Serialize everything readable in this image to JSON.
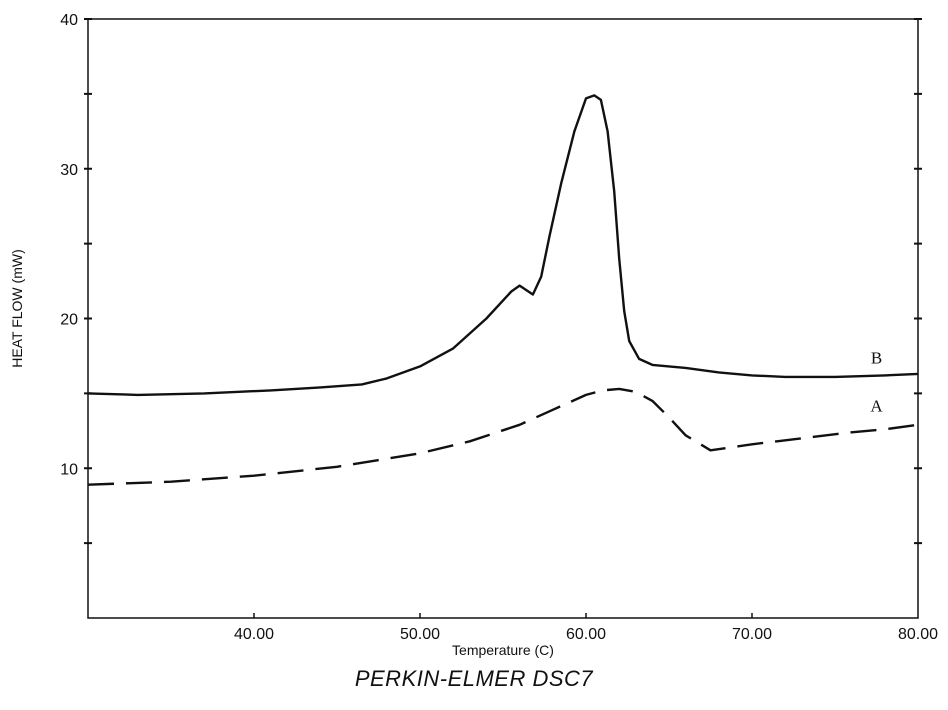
{
  "chart_data": {
    "type": "line",
    "title": "",
    "xlabel": "Temperature (C)",
    "ylabel": "HEAT FLOW (mW)",
    "xlim": [
      30,
      80
    ],
    "ylim": [
      0,
      40
    ],
    "x_ticks": [
      "40.00",
      "50.00",
      "60.00",
      "70.00",
      "80.00"
    ],
    "y_ticks": [
      "10",
      "20",
      "30",
      "40"
    ],
    "grid": false,
    "legend": "none",
    "series": [
      {
        "name": "B",
        "style": "solid",
        "color": "#111111",
        "x": [
          30,
          33,
          37,
          41,
          44,
          46.5,
          48,
          50,
          52,
          54,
          55.5,
          56,
          56.8,
          57.3,
          57.8,
          58.5,
          59.3,
          60,
          60.5,
          60.9,
          61.3,
          61.7,
          62,
          62.3,
          62.6,
          63.2,
          64,
          66,
          68,
          70,
          72,
          75,
          78,
          80
        ],
        "values": [
          15.0,
          14.9,
          15.0,
          15.2,
          15.4,
          15.6,
          16.0,
          16.8,
          18.0,
          20.0,
          21.8,
          22.2,
          21.6,
          22.8,
          25.5,
          29.0,
          32.5,
          34.7,
          34.9,
          34.6,
          32.5,
          28.5,
          24.0,
          20.5,
          18.5,
          17.3,
          16.9,
          16.7,
          16.4,
          16.2,
          16.1,
          16.1,
          16.2,
          16.3
        ]
      },
      {
        "name": "A",
        "style": "dashed",
        "color": "#111111",
        "x": [
          30,
          35,
          40,
          45,
          50,
          53,
          56,
          58,
          60,
          61,
          62,
          63,
          64,
          65,
          66,
          67.5,
          70,
          73,
          76,
          78,
          80
        ],
        "values": [
          8.9,
          9.1,
          9.5,
          10.1,
          11.0,
          11.8,
          12.9,
          13.9,
          14.9,
          15.2,
          15.3,
          15.1,
          14.5,
          13.4,
          12.2,
          11.2,
          11.6,
          12.0,
          12.4,
          12.6,
          12.9
        ]
      }
    ],
    "annotations": [
      {
        "text": "B",
        "x": 77.5,
        "y": 17.0
      },
      {
        "text": "A",
        "x": 77.5,
        "y": 13.8
      }
    ]
  },
  "caption": "PERKIN-ELMER DSC7"
}
